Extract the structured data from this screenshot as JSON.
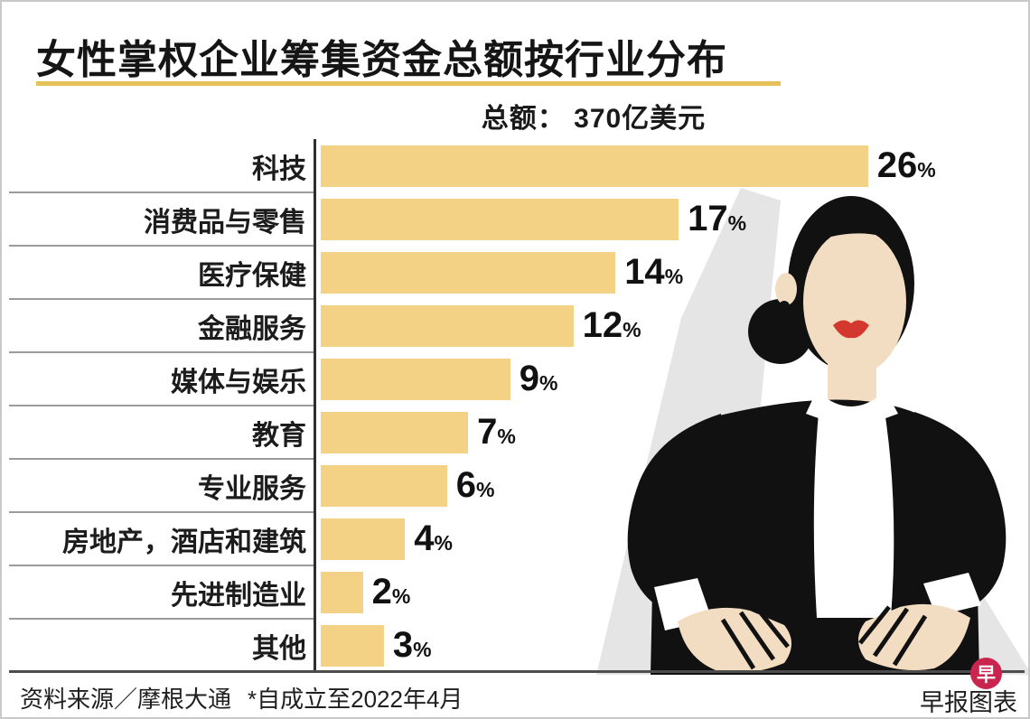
{
  "title": "女性掌权企业筹集资金总额按行业分布",
  "subtitle": "总额： 370亿美元",
  "chart_data": {
    "type": "bar",
    "orientation": "horizontal",
    "title": "女性掌权企业筹集资金总额按行业分布",
    "subtitle": "总额： 370亿美元",
    "unit": "%",
    "categories": [
      "科技",
      "消费品与零售",
      "医疗保健",
      "金融服务",
      "媒体与娱乐",
      "教育",
      "专业服务",
      "房地产，酒店和建筑",
      "先进制造业",
      "其他"
    ],
    "values": [
      26,
      17,
      14,
      12,
      9,
      7,
      6,
      4,
      2,
      3
    ],
    "xlim": [
      0,
      26
    ],
    "grid": false,
    "legend": false
  },
  "footer": {
    "source": "资料来源／摩根大通",
    "note": "*自成立至2022年4月",
    "credit": "早报图表",
    "logo_char": "早"
  },
  "colors": {
    "bar": "#F3D286",
    "title_underline": "#E5C157",
    "logo_red": "#C9254F",
    "lips_red": "#D4372E"
  },
  "illustration": {
    "name": "businesswoman-arms-akimbo",
    "description": "faceless businesswoman with black hair bun, red lips, black suit, white shirt, hands on hips"
  }
}
